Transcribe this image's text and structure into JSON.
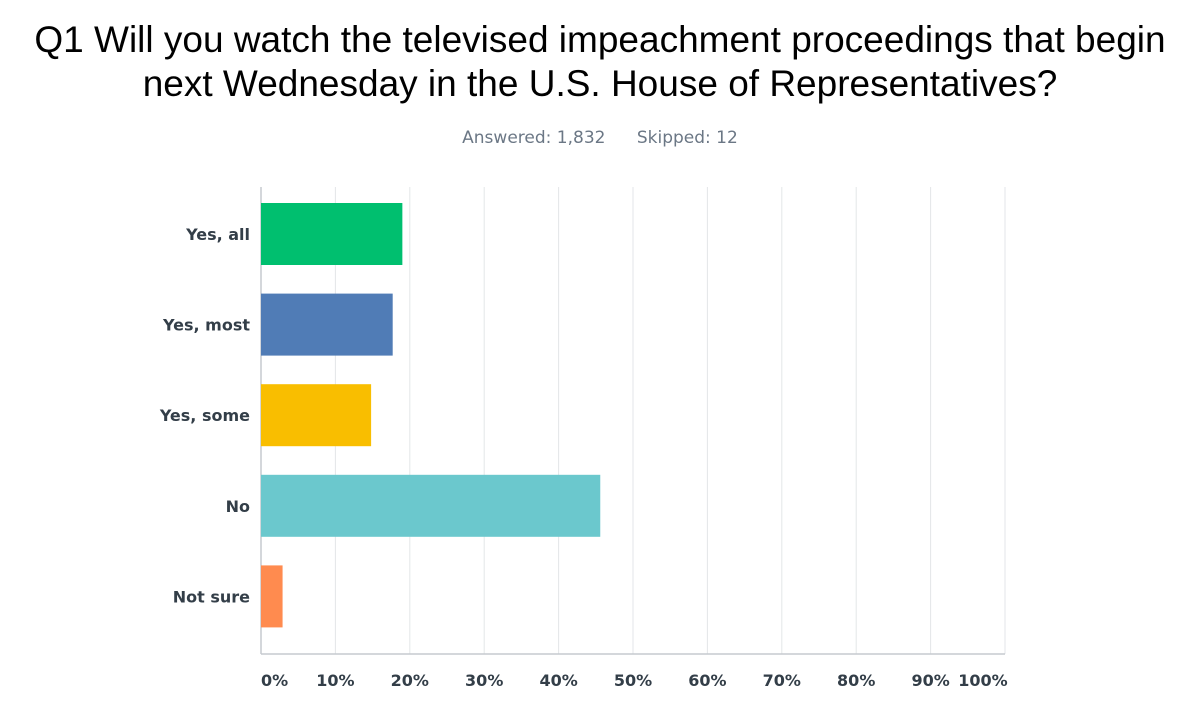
{
  "question": {
    "line1": "Q1 Will you watch the televised impeachment proceedings that begin",
    "line2": "next Wednesday in the U.S. House of Representatives?"
  },
  "stats": {
    "answered": "Answered: 1,832",
    "skipped": "Skipped: 12"
  },
  "chart_data": {
    "type": "bar",
    "orientation": "horizontal",
    "categories": [
      "Yes, all",
      "Yes, most",
      "Yes, some",
      "No",
      "Not sure"
    ],
    "values": [
      19,
      17.7,
      14.8,
      45.6,
      2.9
    ],
    "colors": [
      "#00bf6f",
      "#507cb6",
      "#f9be00",
      "#6bc8cd",
      "#ff8b4f"
    ],
    "x_ticks": [
      "0%",
      "10%",
      "20%",
      "30%",
      "40%",
      "50%",
      "60%",
      "70%",
      "80%",
      "90%",
      "100%"
    ],
    "xlim": [
      0,
      100
    ],
    "grid": true
  }
}
